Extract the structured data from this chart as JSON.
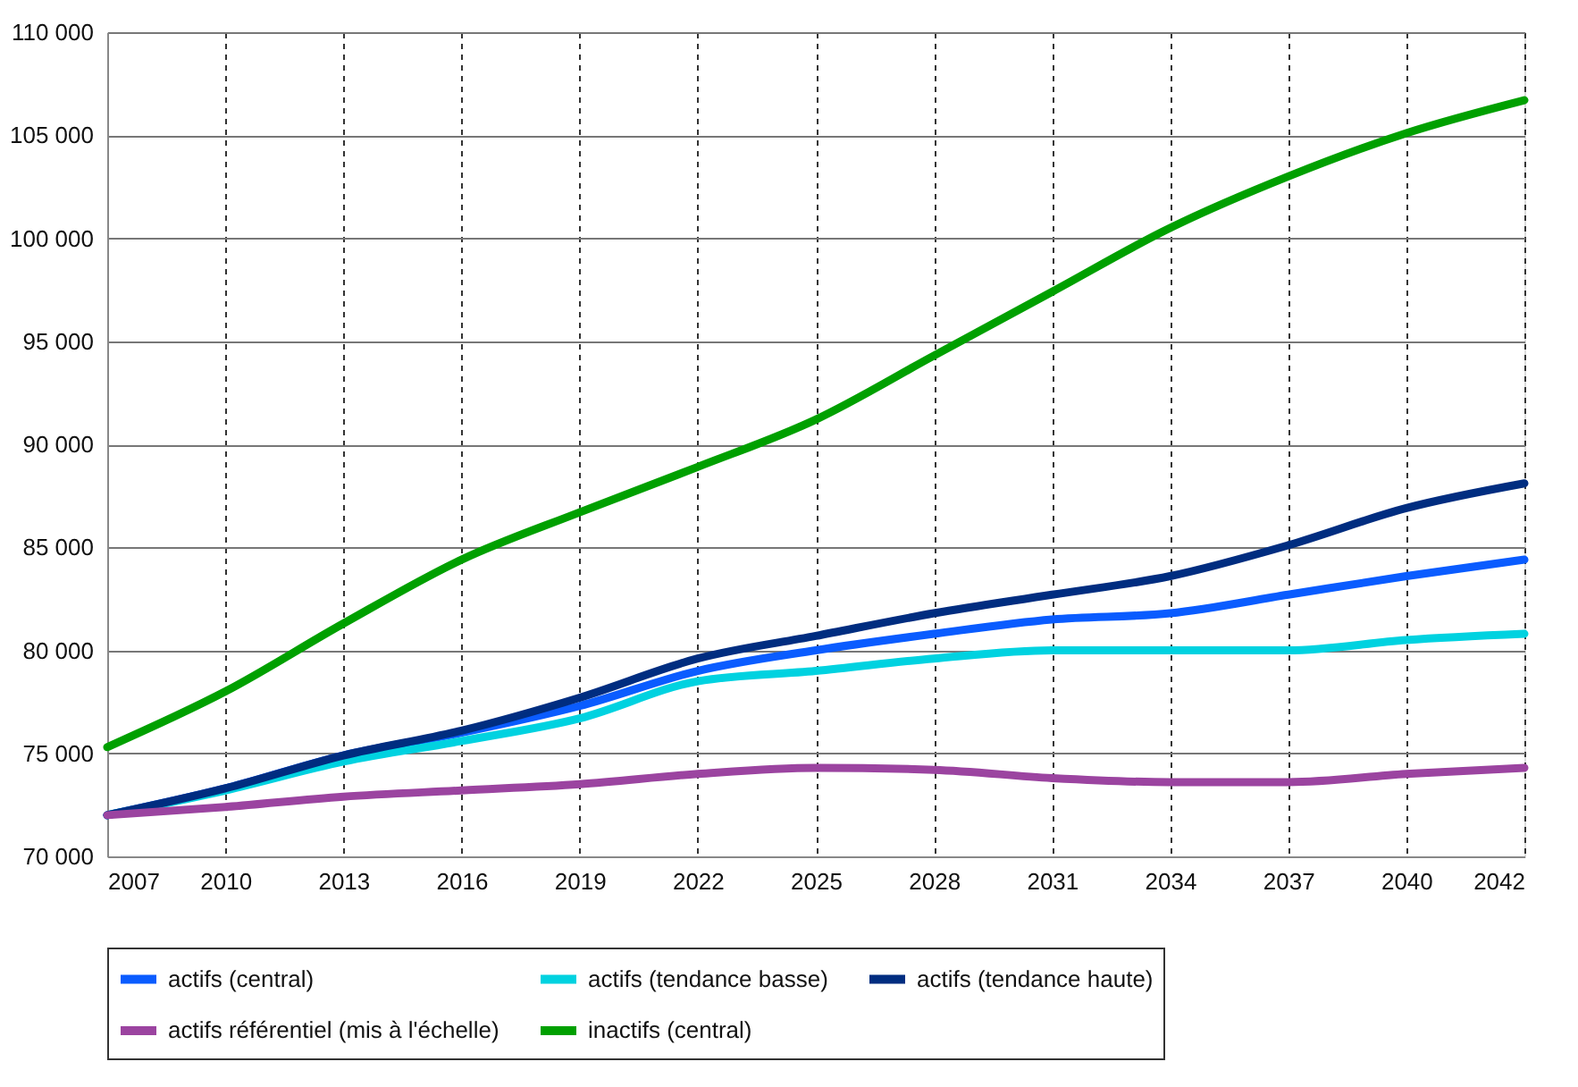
{
  "chart_data": {
    "type": "line",
    "ylim": [
      70000,
      110000
    ],
    "yticks": [
      {
        "value": 70000,
        "label": "70 000"
      },
      {
        "value": 75000,
        "label": "75 000"
      },
      {
        "value": 80000,
        "label": "80 000"
      },
      {
        "value": 85000,
        "label": "85 000"
      },
      {
        "value": 90000,
        "label": "90 000"
      },
      {
        "value": 95000,
        "label": "95 000"
      },
      {
        "value": 100000,
        "label": "100 000"
      },
      {
        "value": 105000,
        "label": "105 000"
      },
      {
        "value": 110000,
        "label": "110 000"
      }
    ],
    "categories": [
      "2007",
      "2010",
      "2013",
      "2016",
      "2019",
      "2022",
      "2025",
      "2028",
      "2031",
      "2034",
      "2037",
      "2040",
      "2042"
    ],
    "grid": true,
    "legend": "bottom",
    "line_style": "solid",
    "series": [
      {
        "name": "actifs (central)",
        "color": "#0a5cff",
        "values": [
          72000,
          73300,
          74900,
          76000,
          77300,
          79000,
          80000,
          80800,
          81500,
          81800,
          82700,
          83600,
          84400
        ]
      },
      {
        "name": "actifs (tendance basse)",
        "color": "#00d2e0",
        "values": [
          72000,
          73200,
          74600,
          75600,
          76700,
          78500,
          79000,
          79600,
          80000,
          80000,
          80000,
          80500,
          80800
        ]
      },
      {
        "name": "actifs (tendance haute)",
        "color": "#002d80",
        "values": [
          72000,
          73300,
          74900,
          76100,
          77700,
          79600,
          80700,
          81800,
          82700,
          83600,
          85100,
          86900,
          88100
        ]
      },
      {
        "name": "actifs référentiel (mis à l'échelle)",
        "color": "#9b44a0",
        "values": [
          72000,
          72400,
          72900,
          73200,
          73500,
          74000,
          74300,
          74200,
          73800,
          73600,
          73600,
          74000,
          74300
        ]
      },
      {
        "name": "inactifs (central)",
        "color": "#00a000",
        "values": [
          75300,
          78000,
          81300,
          84400,
          86700,
          88900,
          91200,
          94300,
          97400,
          100500,
          103000,
          105100,
          106700
        ]
      }
    ]
  }
}
